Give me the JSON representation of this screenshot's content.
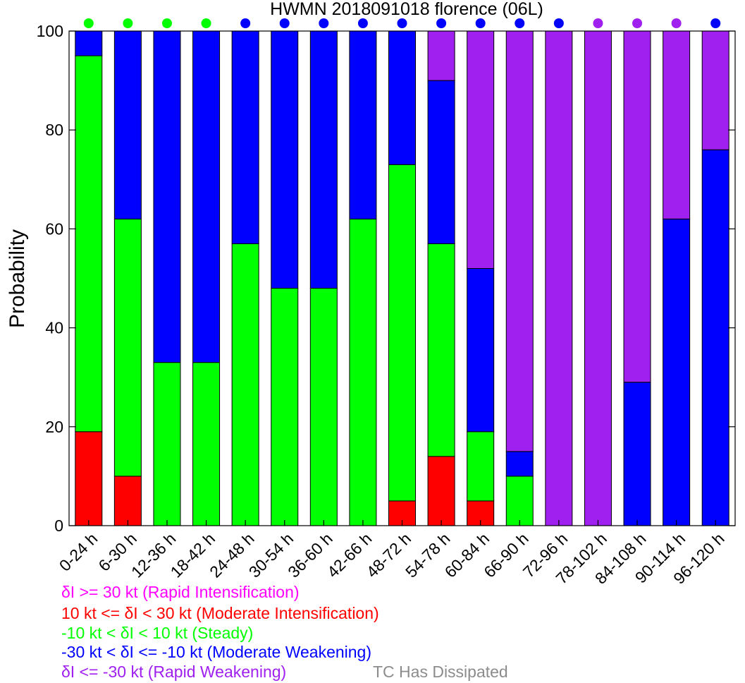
{
  "chart_data": {
    "type": "bar",
    "stacked": true,
    "title": "HWMN 2018091018 florence (06L)",
    "ylabel": "Probability",
    "ylim": [
      0,
      100
    ],
    "yticks": [
      0,
      20,
      40,
      60,
      80,
      100
    ],
    "categories": [
      "0-24 h",
      "6-30 h",
      "12-36 h",
      "18-42 h",
      "24-48 h",
      "30-54 h",
      "36-60 h",
      "42-66 h",
      "48-72 h",
      "54-78 h",
      "60-84 h",
      "66-90 h",
      "72-96 h",
      "78-102 h",
      "84-108 h",
      "90-114 h",
      "96-120 h"
    ],
    "series": [
      {
        "key": "ri",
        "color": "#ff00ff",
        "values": [
          0,
          0,
          0,
          0,
          0,
          0,
          0,
          0,
          0,
          0,
          0,
          0,
          0,
          0,
          0,
          0,
          0
        ]
      },
      {
        "key": "mi",
        "color": "#ff0000",
        "values": [
          19,
          10,
          0,
          0,
          0,
          0,
          0,
          0,
          5,
          14,
          5,
          0,
          0,
          0,
          0,
          0,
          0
        ]
      },
      {
        "key": "steady",
        "color": "#00ff00",
        "values": [
          76,
          52,
          33,
          33,
          57,
          48,
          48,
          62,
          68,
          43,
          14,
          10,
          0,
          0,
          0,
          0,
          0
        ]
      },
      {
        "key": "mw",
        "color": "#0000ff",
        "values": [
          5,
          38,
          67,
          67,
          43,
          52,
          52,
          38,
          27,
          33,
          33,
          5,
          0,
          0,
          29,
          62,
          76
        ]
      },
      {
        "key": "rw",
        "color": "#a020f0",
        "values": [
          0,
          0,
          0,
          0,
          0,
          0,
          0,
          0,
          0,
          10,
          48,
          85,
          100,
          100,
          71,
          38,
          24
        ]
      }
    ],
    "top_markers": [
      "#00ff00",
      "#00ff00",
      "#00ff00",
      "#00ff00",
      "#0000ff",
      "#0000ff",
      "#0000ff",
      "#0000ff",
      "#0000ff",
      "#0000ff",
      "#0000ff",
      "#0000ff",
      "#0000ff",
      "#a020f0",
      "#a020f0",
      "#a020f0",
      "#0000ff"
    ],
    "legend": [
      {
        "text": "δI >= 30 kt (Rapid Intensification)",
        "color": "#ff00ff"
      },
      {
        "text": "10 kt <= δI < 30 kt (Moderate Intensification)",
        "color": "#ff0000"
      },
      {
        "text": "-10 kt < δI < 10 kt (Steady)",
        "color": "#00ff00"
      },
      {
        "text": "-30 kt < δI <= -10 kt (Moderate Weakening)",
        "color": "#0000ff"
      },
      {
        "text": "δI <= -30 kt (Rapid Weakening)",
        "color": "#a020f0"
      }
    ],
    "dissipated_label": {
      "text": "TC Has Dissipated",
      "color": "#8c8c8c"
    }
  }
}
